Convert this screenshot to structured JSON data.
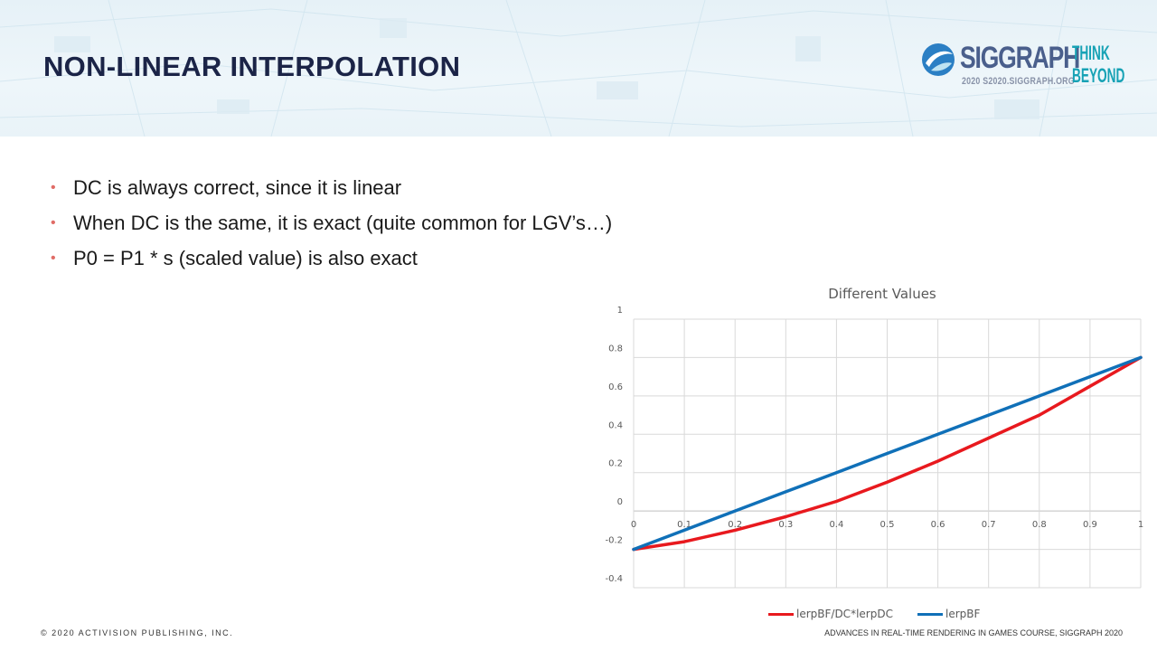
{
  "slide": {
    "title": "NON-LINEAR INTERPOLATION"
  },
  "logo": {
    "word": "SIGGRAPH",
    "sub": "2020  S2020.SIGGRAPH.ORG",
    "tagline_1": "THINK",
    "tagline_2": "BEYOND",
    "colors": {
      "word": "#4a5f8c",
      "tagline": "#17a2b5"
    }
  },
  "bullets": [
    "DC is always correct, since it is linear",
    "When DC is the same, it is exact (quite common for LGV’s…)",
    "P0 = P1 * s (scaled value) is also exact"
  ],
  "chart_data": {
    "type": "line",
    "title": "Different Values",
    "x": [
      0,
      0.1,
      0.2,
      0.3,
      0.4,
      0.5,
      0.6,
      0.7,
      0.8,
      0.9,
      1
    ],
    "x_tick_labels": [
      "0",
      "0.1",
      "0.2",
      "0.3",
      "0.4",
      "0.5",
      "0.6",
      "0.7",
      "0.8",
      "0.9",
      "1"
    ],
    "y_tick_labels": [
      "1",
      "0.8",
      "0.6",
      "0.4",
      "0.2",
      "0",
      "-0.2",
      "-0.4"
    ],
    "y_ticks": [
      1,
      0.8,
      0.6,
      0.4,
      0.2,
      0,
      -0.2,
      -0.4
    ],
    "xlim": [
      0,
      1
    ],
    "ylim": [
      -0.4,
      1
    ],
    "grid": true,
    "legend_position": "bottom",
    "series": [
      {
        "name": "lerpBF/DC*lerpDC",
        "color": "#e8191e",
        "values": [
          -0.2,
          -0.16,
          -0.1,
          -0.03,
          0.05,
          0.15,
          0.26,
          0.38,
          0.5,
          0.65,
          0.8
        ]
      },
      {
        "name": "lerpBF",
        "color": "#1070b8",
        "values": [
          -0.2,
          -0.1,
          0,
          0.1,
          0.2,
          0.3,
          0.4,
          0.5,
          0.6,
          0.7,
          0.8
        ]
      }
    ]
  },
  "footer": {
    "left": "© 2020 ACTIVISION PUBLISHING, INC.",
    "right": "ADVANCES IN REAL-TIME RENDERING IN GAMES COURSE, SIGGRAPH 2020"
  }
}
